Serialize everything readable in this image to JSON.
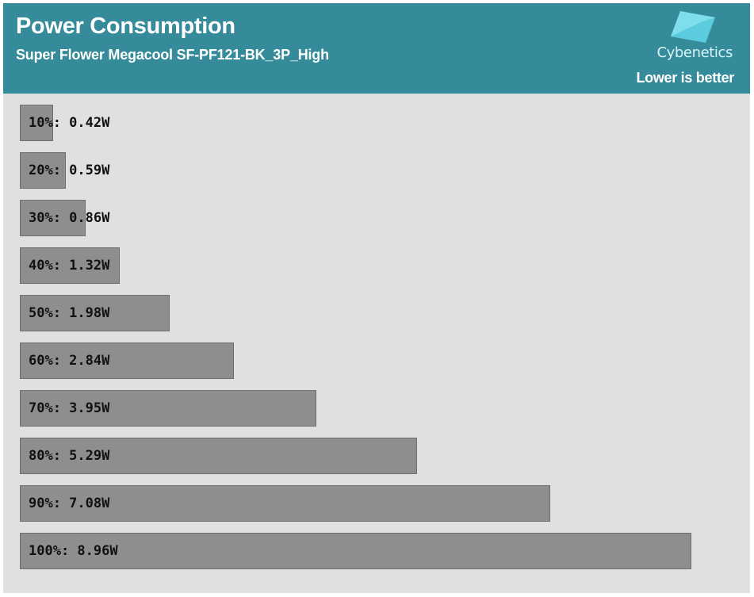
{
  "header": {
    "title": "Power Consumption",
    "subtitle": "Super Flower Megacool SF-PF121-BK_3P_High",
    "logo_text": "Cybenetics",
    "note": "Lower is better"
  },
  "colors": {
    "header_bg": "#358b99",
    "plot_bg": "#e0e0e0",
    "bar_fill": "#8e8e8e",
    "logo_accent": "#5fd3e6"
  },
  "chart_data": {
    "type": "bar",
    "orientation": "horizontal",
    "title": "Power Consumption",
    "subtitle": "Super Flower Megacool SF-PF121-BK_3P_High",
    "categories": [
      "10%",
      "20%",
      "30%",
      "40%",
      "50%",
      "60%",
      "70%",
      "80%",
      "90%",
      "100%"
    ],
    "values": [
      0.42,
      0.59,
      0.86,
      1.32,
      1.98,
      2.84,
      3.95,
      5.29,
      7.08,
      8.96
    ],
    "unit": "W",
    "labels": [
      "10%: 0.42W",
      "20%: 0.59W",
      "30%: 0.86W",
      "40%: 1.32W",
      "50%: 1.98W",
      "60%: 2.84W",
      "70%: 3.95W",
      "80%: 5.29W",
      "90%: 7.08W",
      "100%: 8.96W"
    ],
    "xlim": [
      0,
      9.25
    ],
    "grid": false,
    "legend": "none"
  }
}
